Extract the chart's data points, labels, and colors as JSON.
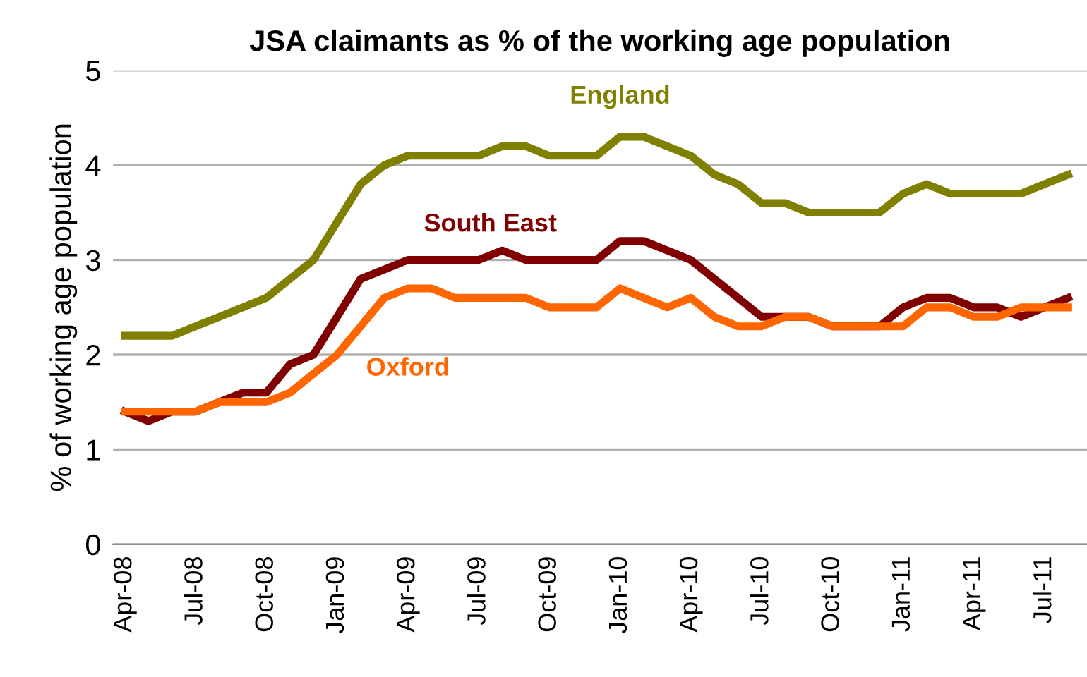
{
  "chart_data": {
    "type": "line",
    "title": "JSA claimants as % of the working age population",
    "ylabel": "% of working age population",
    "categories": [
      "Apr-08",
      null,
      null,
      "Jul-08",
      null,
      null,
      "Oct-08",
      null,
      null,
      "Jan-09",
      null,
      null,
      "Apr-09",
      null,
      null,
      "Jul-09",
      null,
      null,
      "Oct-09",
      null,
      null,
      "Jan-10",
      null,
      null,
      "Apr-10",
      null,
      null,
      "Jul-10",
      null,
      null,
      "Oct-10",
      null,
      null,
      "Jan-11",
      null,
      null,
      "Apr-11",
      null,
      null,
      "Jul-11",
      null
    ],
    "series": [
      {
        "name": "England",
        "color": "#808000",
        "values": [
          2.2,
          2.2,
          2.2,
          2.3,
          2.4,
          2.5,
          2.6,
          2.8,
          3.0,
          3.4,
          3.8,
          4.0,
          4.1,
          4.1,
          4.1,
          4.1,
          4.2,
          4.2,
          4.1,
          4.1,
          4.1,
          4.3,
          4.3,
          4.2,
          4.1,
          3.9,
          3.8,
          3.6,
          3.6,
          3.5,
          3.5,
          3.5,
          3.5,
          3.7,
          3.8,
          3.7,
          3.7,
          3.7,
          3.7,
          3.8,
          3.9
        ]
      },
      {
        "name": "South East",
        "color": "#800000",
        "values": [
          1.4,
          1.3,
          1.4,
          1.4,
          1.5,
          1.6,
          1.6,
          1.9,
          2.0,
          2.4,
          2.8,
          2.9,
          3.0,
          3.0,
          3.0,
          3.0,
          3.1,
          3.0,
          3.0,
          3.0,
          3.0,
          3.2,
          3.2,
          3.1,
          3.0,
          2.8,
          2.6,
          2.4,
          2.4,
          2.4,
          2.3,
          2.3,
          2.3,
          2.5,
          2.6,
          2.6,
          2.5,
          2.5,
          2.4,
          2.5,
          2.6
        ]
      },
      {
        "name": "Oxford",
        "color": "#ff6600",
        "values": [
          1.4,
          1.4,
          1.4,
          1.4,
          1.5,
          1.5,
          1.5,
          1.6,
          1.8,
          2.0,
          2.3,
          2.6,
          2.7,
          2.7,
          2.6,
          2.6,
          2.6,
          2.6,
          2.5,
          2.5,
          2.5,
          2.7,
          2.6,
          2.5,
          2.6,
          2.4,
          2.3,
          2.3,
          2.4,
          2.4,
          2.3,
          2.3,
          2.3,
          2.3,
          2.5,
          2.5,
          2.4,
          2.4,
          2.5,
          2.5,
          2.5
        ]
      }
    ],
    "ylim": [
      0,
      5
    ],
    "yticks": [
      0,
      1,
      2,
      3,
      4,
      5
    ],
    "grid": "y",
    "legend": false,
    "marker": "none",
    "line_style": "solid"
  }
}
